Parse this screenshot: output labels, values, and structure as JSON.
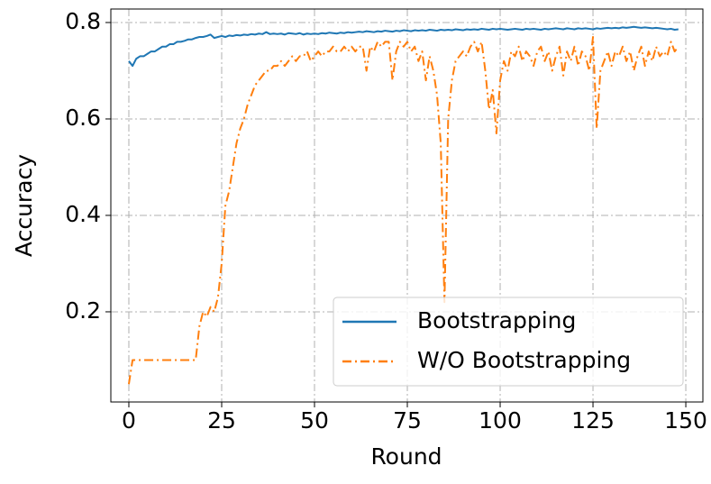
{
  "chart_data": {
    "type": "line",
    "xlabel": "Round",
    "ylabel": "Accuracy",
    "x": [
      0,
      1,
      2,
      3,
      4,
      5,
      6,
      7,
      8,
      9,
      10,
      11,
      12,
      13,
      14,
      15,
      16,
      17,
      18,
      19,
      20,
      21,
      22,
      23,
      24,
      25,
      26,
      27,
      28,
      29,
      30,
      31,
      32,
      33,
      34,
      35,
      36,
      37,
      38,
      39,
      40,
      41,
      42,
      43,
      44,
      45,
      46,
      47,
      48,
      49,
      50,
      51,
      52,
      53,
      54,
      55,
      56,
      57,
      58,
      59,
      60,
      61,
      62,
      63,
      64,
      65,
      66,
      67,
      68,
      69,
      70,
      71,
      72,
      73,
      74,
      75,
      76,
      77,
      78,
      79,
      80,
      81,
      82,
      83,
      84,
      85,
      86,
      87,
      88,
      89,
      90,
      91,
      92,
      93,
      94,
      95,
      96,
      97,
      98,
      99,
      100,
      101,
      102,
      103,
      104,
      105,
      106,
      107,
      108,
      109,
      110,
      111,
      112,
      113,
      114,
      115,
      116,
      117,
      118,
      119,
      120,
      121,
      122,
      123,
      124,
      125,
      126,
      127,
      128,
      129,
      130,
      131,
      132,
      133,
      134,
      135,
      136,
      137,
      138,
      139,
      140,
      141,
      142,
      143,
      144,
      145,
      146,
      147,
      148
    ],
    "series": [
      {
        "name": "Bootstrapping",
        "color": "#1f77b4",
        "linestyle": "solid",
        "values": [
          0.72,
          0.71,
          0.725,
          0.73,
          0.73,
          0.735,
          0.74,
          0.74,
          0.745,
          0.75,
          0.75,
          0.755,
          0.755,
          0.76,
          0.76,
          0.762,
          0.765,
          0.765,
          0.768,
          0.77,
          0.77,
          0.772,
          0.775,
          0.768,
          0.77,
          0.772,
          0.77,
          0.773,
          0.772,
          0.774,
          0.773,
          0.775,
          0.774,
          0.776,
          0.775,
          0.777,
          0.776,
          0.78,
          0.776,
          0.777,
          0.776,
          0.777,
          0.775,
          0.778,
          0.777,
          0.776,
          0.778,
          0.775,
          0.777,
          0.776,
          0.777,
          0.776,
          0.778,
          0.777,
          0.779,
          0.778,
          0.777,
          0.779,
          0.778,
          0.78,
          0.779,
          0.78,
          0.781,
          0.78,
          0.782,
          0.781,
          0.78,
          0.782,
          0.781,
          0.783,
          0.782,
          0.781,
          0.783,
          0.782,
          0.784,
          0.783,
          0.782,
          0.784,
          0.783,
          0.784,
          0.783,
          0.785,
          0.784,
          0.783,
          0.785,
          0.784,
          0.785,
          0.784,
          0.786,
          0.785,
          0.784,
          0.786,
          0.785,
          0.786,
          0.785,
          0.787,
          0.786,
          0.785,
          0.787,
          0.786,
          0.787,
          0.786,
          0.785,
          0.786,
          0.787,
          0.786,
          0.785,
          0.787,
          0.786,
          0.787,
          0.786,
          0.785,
          0.787,
          0.786,
          0.787,
          0.788,
          0.787,
          0.786,
          0.788,
          0.787,
          0.786,
          0.788,
          0.787,
          0.788,
          0.787,
          0.786,
          0.788,
          0.787,
          0.788,
          0.789,
          0.788,
          0.789,
          0.788,
          0.79,
          0.789,
          0.79,
          0.791,
          0.79,
          0.789,
          0.79,
          0.789,
          0.788,
          0.789,
          0.788,
          0.787,
          0.786,
          0.787,
          0.785,
          0.786
        ]
      },
      {
        "name": "W/O Bootstrapping",
        "color": "#ff7f0e",
        "linestyle": "dashdot",
        "values": [
          0.05,
          0.1,
          0.1,
          0.1,
          0.1,
          0.1,
          0.1,
          0.1,
          0.1,
          0.1,
          0.1,
          0.1,
          0.1,
          0.1,
          0.1,
          0.1,
          0.1,
          0.1,
          0.1,
          0.17,
          0.2,
          0.19,
          0.21,
          0.2,
          0.23,
          0.3,
          0.42,
          0.45,
          0.5,
          0.55,
          0.58,
          0.6,
          0.63,
          0.65,
          0.67,
          0.68,
          0.69,
          0.7,
          0.7,
          0.71,
          0.71,
          0.72,
          0.71,
          0.72,
          0.73,
          0.72,
          0.73,
          0.73,
          0.74,
          0.72,
          0.73,
          0.74,
          0.73,
          0.74,
          0.74,
          0.75,
          0.74,
          0.74,
          0.75,
          0.74,
          0.75,
          0.74,
          0.75,
          0.75,
          0.7,
          0.75,
          0.74,
          0.76,
          0.75,
          0.76,
          0.76,
          0.68,
          0.74,
          0.76,
          0.75,
          0.76,
          0.74,
          0.75,
          0.72,
          0.74,
          0.68,
          0.73,
          0.7,
          0.65,
          0.55,
          0.22,
          0.6,
          0.68,
          0.72,
          0.73,
          0.74,
          0.73,
          0.75,
          0.76,
          0.74,
          0.76,
          0.7,
          0.62,
          0.66,
          0.57,
          0.68,
          0.72,
          0.7,
          0.74,
          0.73,
          0.75,
          0.72,
          0.74,
          0.73,
          0.71,
          0.74,
          0.75,
          0.72,
          0.74,
          0.7,
          0.73,
          0.75,
          0.69,
          0.74,
          0.72,
          0.75,
          0.71,
          0.74,
          0.73,
          0.7,
          0.77,
          0.58,
          0.7,
          0.72,
          0.74,
          0.71,
          0.74,
          0.73,
          0.75,
          0.72,
          0.74,
          0.7,
          0.73,
          0.75,
          0.71,
          0.74,
          0.72,
          0.75,
          0.73,
          0.74,
          0.73,
          0.76,
          0.74,
          0.75
        ]
      }
    ],
    "xlim": [
      -4.85,
      154.6
    ],
    "ylim": [
      0.013,
      0.828
    ],
    "xticks": [
      0,
      25,
      50,
      75,
      100,
      125,
      150
    ],
    "yticks": [
      0.2,
      0.4,
      0.6,
      0.8
    ],
    "grid": true,
    "legend": "lower right"
  }
}
